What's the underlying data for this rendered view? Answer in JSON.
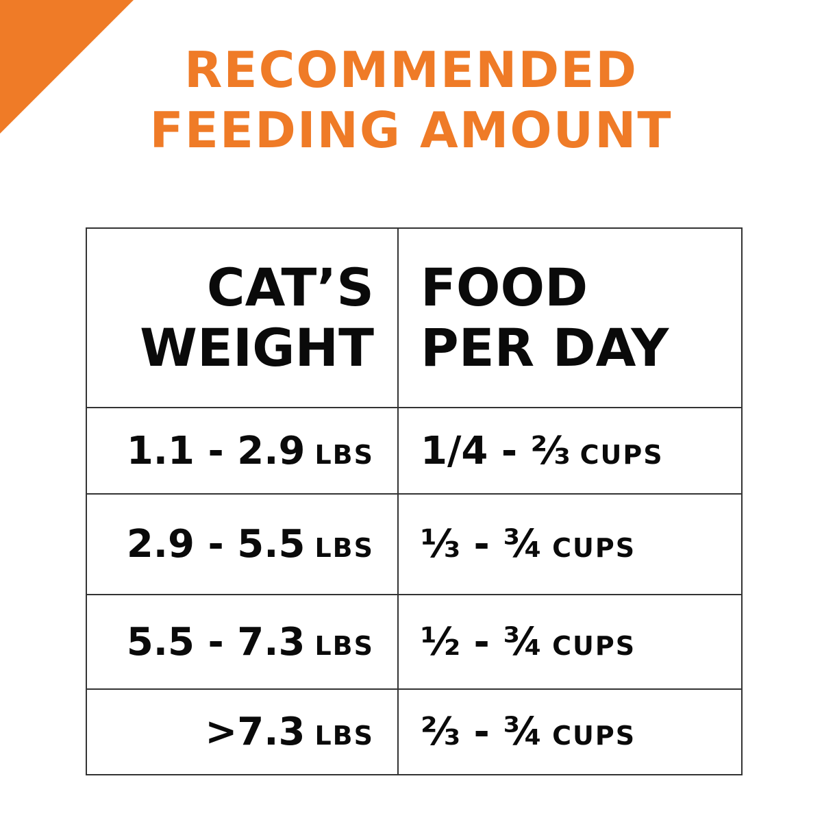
{
  "colors": {
    "accent": "#ef7b27",
    "text": "#0a0a0a",
    "border": "#333333"
  },
  "title": {
    "line1": "RECOMMENDED",
    "line2": "FEEDING AMOUNT"
  },
  "table": {
    "headers": {
      "weight": {
        "line1": "CAT’S",
        "line2": "WEIGHT"
      },
      "food": {
        "line1": "FOOD",
        "line2": "PER DAY"
      }
    },
    "rows": [
      {
        "weight": "1.1 - 2.9",
        "weight_unit": "LBS",
        "food": "1/4 - ⅔",
        "food_unit": "CUPS"
      },
      {
        "weight": "2.9 - 5.5",
        "weight_unit": "LBS",
        "food": "⅓ - ¾",
        "food_unit": "CUPS"
      },
      {
        "weight": "5.5 - 7.3",
        "weight_unit": "LBS",
        "food": "½ - ¾",
        "food_unit": "CUPS"
      },
      {
        "weight": ">7.3",
        "weight_unit": "LBS",
        "food": "⅔ - ¾",
        "food_unit": "CUPS"
      }
    ]
  }
}
